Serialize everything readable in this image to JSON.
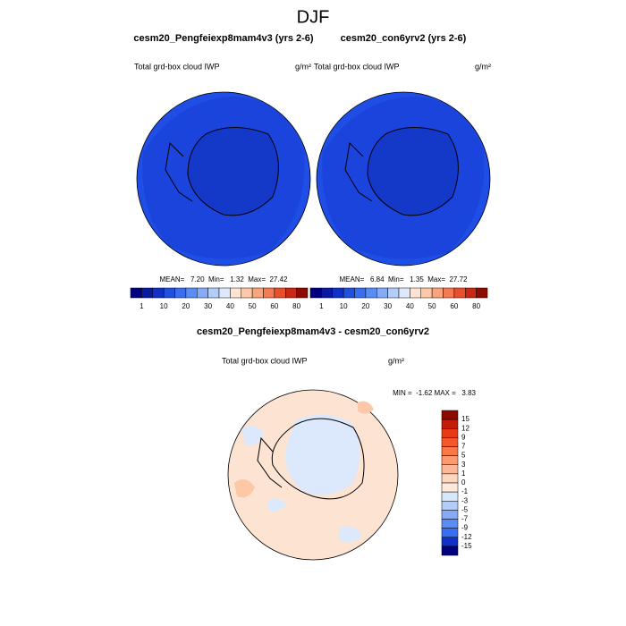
{
  "title": "DJF",
  "panels": [
    {
      "title": "cesm20_Pengfeiexp8mam4v3 (yrs 2-6)",
      "left": "Total grd-box cloud IWP",
      "right": "g/m²",
      "stats": "MEAN=   7.20  Min=   1.32  Max=  27.42"
    },
    {
      "title": "cesm20_con6yrv2 (yrs 2-6)",
      "left": "Total grd-box cloud IWP",
      "right": "g/m²",
      "stats": "MEAN=   6.84  Min=   1.35  Max=  27.72"
    }
  ],
  "colorbar": {
    "labels": [
      "1",
      "10",
      "20",
      "30",
      "40",
      "50",
      "60",
      "80"
    ],
    "colors": [
      "#00007f",
      "#0a1aa0",
      "#1030c8",
      "#2050e0",
      "#3a6ef0",
      "#5a8cf5",
      "#86aaf5",
      "#b4ccf8",
      "#dce8fb",
      "#fde3d2",
      "#fcc8a8",
      "#f9a47c",
      "#f57c52",
      "#e8502c",
      "#c82814",
      "#8c0a00"
    ]
  },
  "diff": {
    "title": "cesm20_Pengfeiexp8mam4v3 - cesm20_con6yrv2",
    "left": "Total grd-box cloud IWP",
    "right": "g/m²",
    "stats": "MIN =  -1.62 MAX =   3.83",
    "labels": [
      "15",
      "12",
      "9",
      "7",
      "5",
      "3",
      "1",
      "0",
      "-1",
      "-3",
      "-5",
      "-7",
      "-9",
      "-12",
      "-15"
    ],
    "colors": [
      "#8c0a00",
      "#c41c0a",
      "#e83a14",
      "#f4582a",
      "#f87848",
      "#fa9a6e",
      "#fcb896",
      "#fdd6be",
      "#fde8da",
      "#d8e8fb",
      "#b4ccf8",
      "#86aaf5",
      "#5a8cf5",
      "#3a6ef0",
      "#1030c8",
      "#00007f"
    ]
  }
}
